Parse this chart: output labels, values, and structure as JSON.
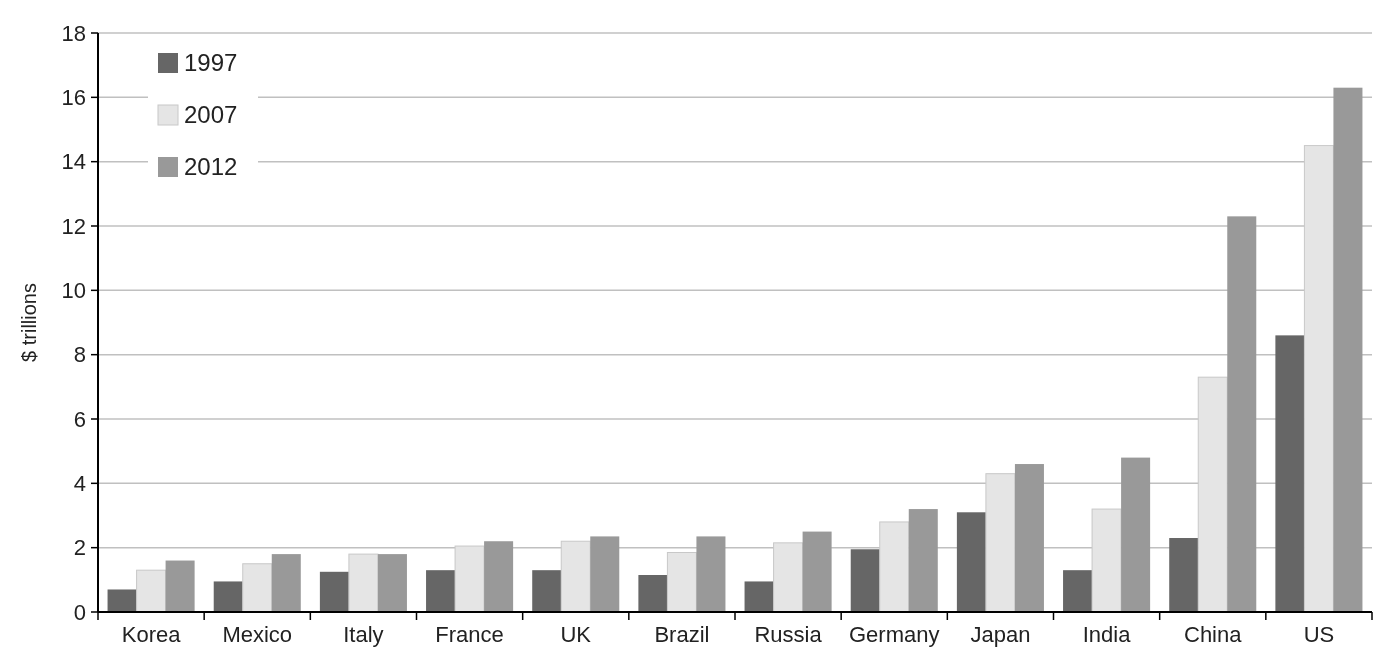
{
  "chart_data": {
    "type": "bar",
    "ylabel": "$ trillions",
    "categories": [
      "Korea",
      "Mexico",
      "Italy",
      "France",
      "UK",
      "Brazil",
      "Russia",
      "Germany",
      "Japan",
      "India",
      "China",
      "US"
    ],
    "series": [
      {
        "name": "1997",
        "color": "#666666",
        "values": [
          0.7,
          0.95,
          1.25,
          1.3,
          1.3,
          1.15,
          0.95,
          1.95,
          3.1,
          1.3,
          2.3,
          8.6
        ]
      },
      {
        "name": "2007",
        "color": "#e5e5e5",
        "values": [
          1.3,
          1.5,
          1.8,
          2.05,
          2.2,
          1.85,
          2.15,
          2.8,
          4.3,
          3.2,
          7.3,
          14.5
        ]
      },
      {
        "name": "2012",
        "color": "#999999",
        "values": [
          1.6,
          1.8,
          1.8,
          2.2,
          2.35,
          2.35,
          2.5,
          3.2,
          4.6,
          4.8,
          12.3,
          16.3
        ]
      }
    ],
    "ylim": [
      0,
      18
    ],
    "yticks": [
      0,
      2,
      4,
      6,
      8,
      10,
      12,
      14,
      16,
      18
    ],
    "grid": "y",
    "legend": "top left"
  }
}
